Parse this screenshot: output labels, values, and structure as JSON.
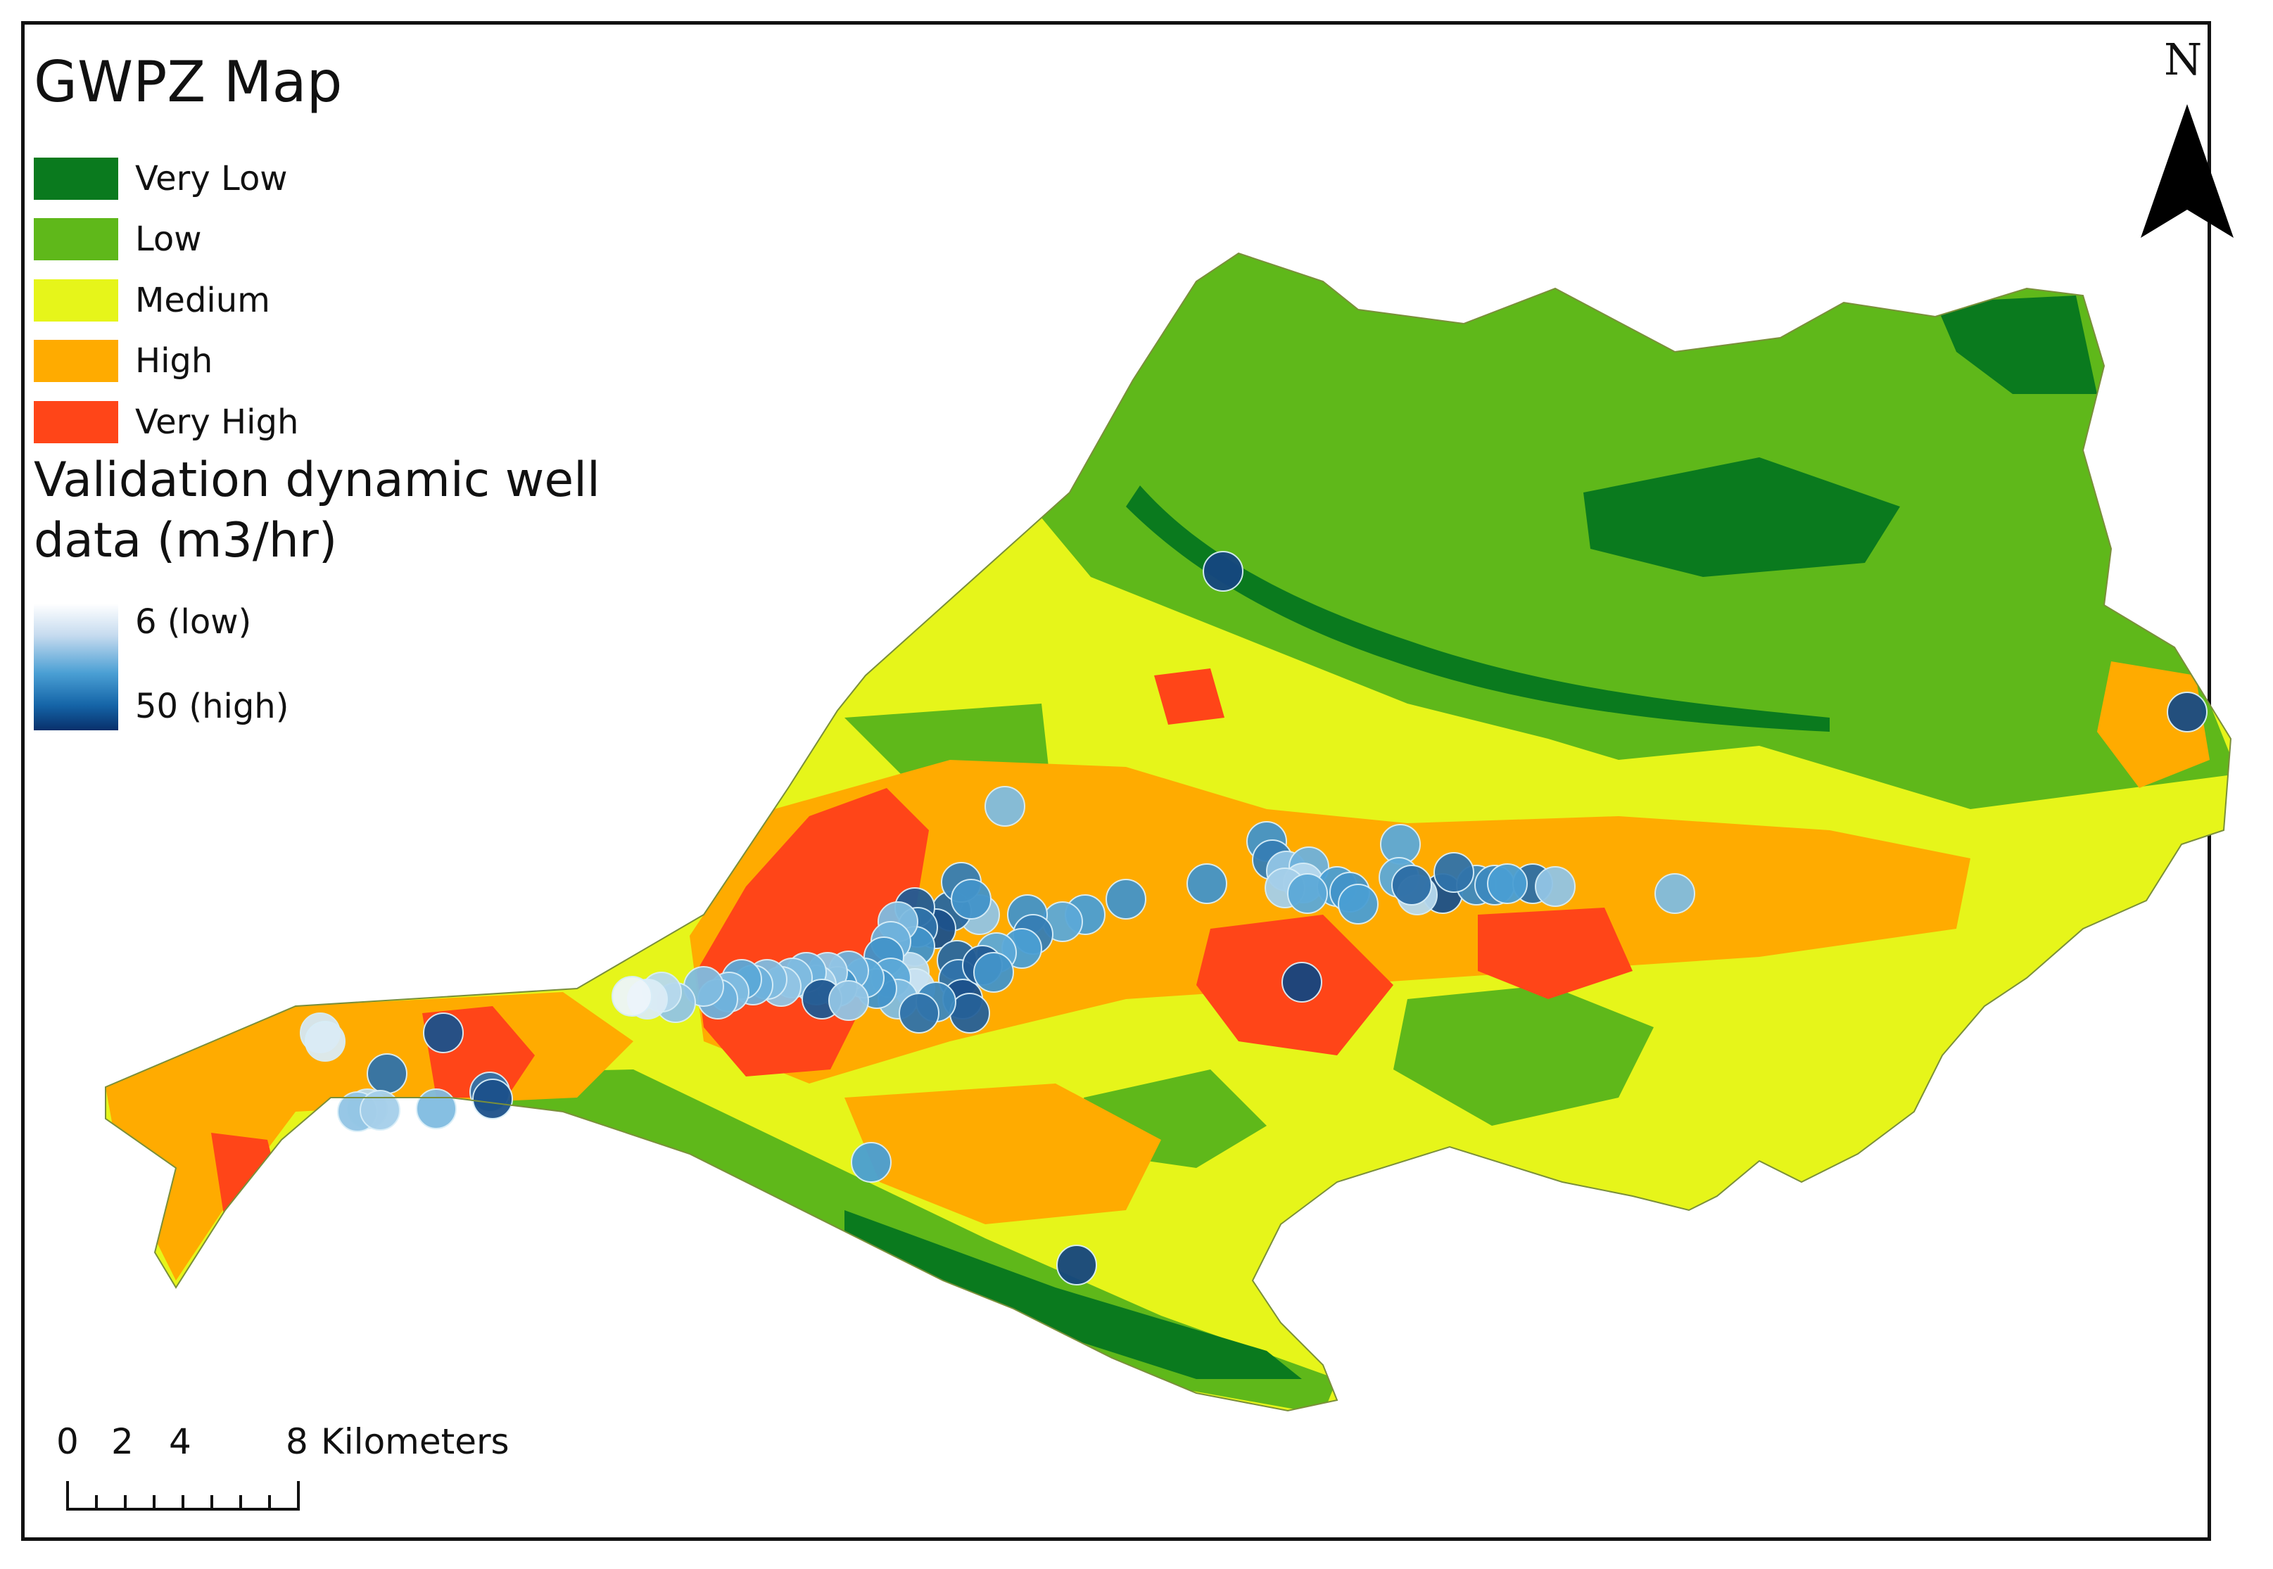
{
  "legend": {
    "title": "GWPZ Map",
    "classes": [
      {
        "label": "Very Low",
        "color": "#0a7a1e"
      },
      {
        "label": "Low",
        "color": "#5fb81a"
      },
      {
        "label": "Medium",
        "color": "#e6f51a"
      },
      {
        "label": "High",
        "color": "#ffab00"
      },
      {
        "label": "Very High",
        "color": "#ff4518"
      }
    ],
    "validation_title": "Validation dynamic well data (m3/hr)",
    "low_label": "6 (low)",
    "high_label": "50 (high)"
  },
  "north_arrow": {
    "letter": "N"
  },
  "scale_bar": {
    "ticks": [
      "0",
      "2",
      "4",
      "8"
    ],
    "unit": "Kilometers"
  },
  "colors": {
    "frame": "#111111",
    "background": "#ffffff",
    "wells_low": "#ffffff",
    "wells_high": "#08306b"
  }
}
